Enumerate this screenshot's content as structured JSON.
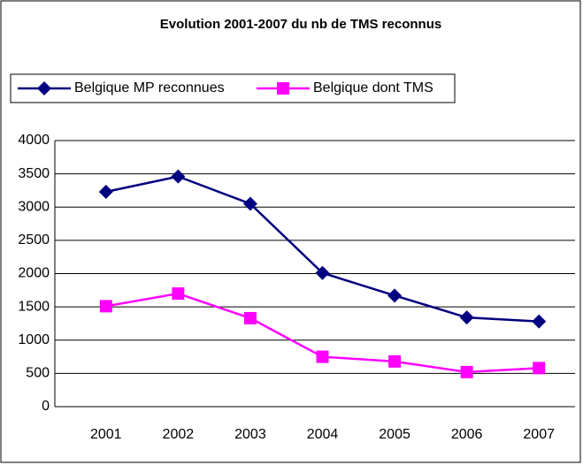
{
  "chart_data": {
    "type": "line",
    "title": "Evolution 2001-2007 du nb de TMS reconnus",
    "categories": [
      "2001",
      "2002",
      "2003",
      "2004",
      "2005",
      "2006",
      "2007"
    ],
    "series": [
      {
        "name": "Belgique MP reconnues",
        "color": "#000080",
        "marker": "diamond",
        "values": [
          3230,
          3460,
          3050,
          2010,
          1670,
          1340,
          1280
        ]
      },
      {
        "name": "Belgique dont TMS",
        "color": "#ff00ff",
        "marker": "square",
        "values": [
          1510,
          1700,
          1330,
          750,
          680,
          520,
          580
        ]
      }
    ],
    "ylim": [
      0,
      4000
    ],
    "yticks": [
      0,
      500,
      1000,
      1500,
      2000,
      2500,
      3000,
      3500,
      4000
    ],
    "grid": true
  }
}
